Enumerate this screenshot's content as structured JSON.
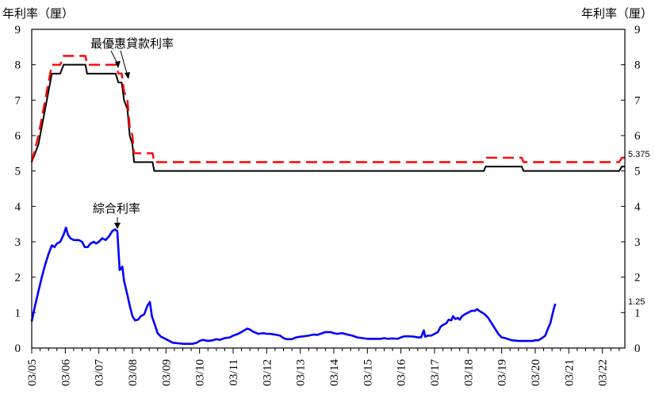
{
  "chart_data": {
    "type": "line",
    "left_unit_label": "年利率（厘）",
    "right_unit_label": "年利率（厘）",
    "ylim": [
      0,
      9
    ],
    "y_ticks": [
      "0",
      "1",
      "2",
      "3",
      "4",
      "5",
      "6",
      "7",
      "8",
      "9"
    ],
    "xlim": [
      2005.0,
      2022.67
    ],
    "x_ticks": [
      "03/05",
      "03/06",
      "03/07",
      "03/08",
      "03/09",
      "03/10",
      "03/11",
      "03/12",
      "03/13",
      "03/14",
      "03/15",
      "03/16",
      "03/17",
      "03/18",
      "03/19",
      "03/20",
      "03/21",
      "03/22"
    ],
    "grid": false,
    "legend": "none",
    "annotations": [
      {
        "text": "最優惠貸款利率"
      },
      {
        "text": "綜合利率"
      }
    ],
    "end_labels": [
      "5.375",
      "1.25"
    ],
    "colors": {
      "prime_low": "#000000",
      "prime_high": "#ff0000",
      "composite": "#0000ff"
    },
    "series": [
      {
        "key": "prime_low",
        "style": "solid",
        "points": [
          [
            2005.0,
            5.25
          ],
          [
            2005.2,
            5.75
          ],
          [
            2005.35,
            6.5
          ],
          [
            2005.5,
            7.25
          ],
          [
            2005.6,
            7.75
          ],
          [
            2005.85,
            7.75
          ],
          [
            2005.95,
            8.0
          ],
          [
            2006.6,
            8.0
          ],
          [
            2006.65,
            7.75
          ],
          [
            2007.5,
            7.75
          ],
          [
            2007.58,
            7.5
          ],
          [
            2007.68,
            7.5
          ],
          [
            2007.75,
            7.0
          ],
          [
            2007.85,
            6.75
          ],
          [
            2007.92,
            6.0
          ],
          [
            2008.0,
            5.75
          ],
          [
            2008.05,
            5.25
          ],
          [
            2008.6,
            5.25
          ],
          [
            2008.65,
            5.0
          ],
          [
            2018.47,
            5.0
          ],
          [
            2018.52,
            5.125
          ],
          [
            2019.6,
            5.125
          ],
          [
            2019.65,
            5.0
          ],
          [
            2022.5,
            5.0
          ],
          [
            2022.58,
            5.125
          ],
          [
            2022.67,
            5.125
          ]
        ]
      },
      {
        "key": "prime_high",
        "style": "dashed",
        "points": [
          [
            2005.0,
            5.25
          ],
          [
            2005.2,
            6.0
          ],
          [
            2005.35,
            6.75
          ],
          [
            2005.5,
            7.5
          ],
          [
            2005.6,
            8.0
          ],
          [
            2005.85,
            8.0
          ],
          [
            2005.95,
            8.25
          ],
          [
            2006.6,
            8.25
          ],
          [
            2006.65,
            8.0
          ],
          [
            2007.5,
            8.0
          ],
          [
            2007.58,
            7.75
          ],
          [
            2007.68,
            7.75
          ],
          [
            2007.75,
            7.25
          ],
          [
            2007.85,
            7.0
          ],
          [
            2007.92,
            6.25
          ],
          [
            2008.0,
            6.0
          ],
          [
            2008.05,
            5.5
          ],
          [
            2008.6,
            5.5
          ],
          [
            2008.65,
            5.25
          ],
          [
            2018.47,
            5.25
          ],
          [
            2018.52,
            5.375
          ],
          [
            2019.6,
            5.375
          ],
          [
            2019.65,
            5.25
          ],
          [
            2022.5,
            5.25
          ],
          [
            2022.58,
            5.375
          ],
          [
            2022.67,
            5.375
          ]
        ]
      },
      {
        "key": "composite",
        "style": "solid",
        "points": [
          [
            2005.0,
            0.75
          ],
          [
            2005.1,
            1.2
          ],
          [
            2005.2,
            1.6
          ],
          [
            2005.3,
            2.0
          ],
          [
            2005.4,
            2.35
          ],
          [
            2005.5,
            2.65
          ],
          [
            2005.6,
            2.9
          ],
          [
            2005.68,
            2.85
          ],
          [
            2005.75,
            2.95
          ],
          [
            2005.85,
            3.0
          ],
          [
            2005.95,
            3.2
          ],
          [
            2006.02,
            3.4
          ],
          [
            2006.08,
            3.2
          ],
          [
            2006.15,
            3.1
          ],
          [
            2006.25,
            3.05
          ],
          [
            2006.4,
            3.05
          ],
          [
            2006.5,
            3.0
          ],
          [
            2006.58,
            2.85
          ],
          [
            2006.67,
            2.85
          ],
          [
            2006.75,
            2.95
          ],
          [
            2006.85,
            3.0
          ],
          [
            2006.92,
            2.95
          ],
          [
            2007.0,
            3.0
          ],
          [
            2007.1,
            3.1
          ],
          [
            2007.2,
            3.05
          ],
          [
            2007.3,
            3.15
          ],
          [
            2007.4,
            3.3
          ],
          [
            2007.48,
            3.35
          ],
          [
            2007.55,
            3.3
          ],
          [
            2007.62,
            2.2
          ],
          [
            2007.7,
            2.3
          ],
          [
            2007.75,
            1.9
          ],
          [
            2007.85,
            1.5
          ],
          [
            2007.92,
            1.2
          ],
          [
            2008.0,
            0.9
          ],
          [
            2008.08,
            0.78
          ],
          [
            2008.17,
            0.8
          ],
          [
            2008.25,
            0.9
          ],
          [
            2008.35,
            0.95
          ],
          [
            2008.45,
            1.2
          ],
          [
            2008.52,
            1.3
          ],
          [
            2008.58,
            0.9
          ],
          [
            2008.67,
            0.65
          ],
          [
            2008.75,
            0.42
          ],
          [
            2008.85,
            0.32
          ],
          [
            2009.0,
            0.25
          ],
          [
            2009.2,
            0.15
          ],
          [
            2009.5,
            0.12
          ],
          [
            2009.8,
            0.12
          ],
          [
            2009.92,
            0.15
          ],
          [
            2010.0,
            0.2
          ],
          [
            2010.1,
            0.23
          ],
          [
            2010.25,
            0.2
          ],
          [
            2010.4,
            0.22
          ],
          [
            2010.5,
            0.25
          ],
          [
            2010.6,
            0.23
          ],
          [
            2010.75,
            0.28
          ],
          [
            2010.9,
            0.3
          ],
          [
            2011.0,
            0.35
          ],
          [
            2011.15,
            0.4
          ],
          [
            2011.3,
            0.48
          ],
          [
            2011.42,
            0.55
          ],
          [
            2011.5,
            0.52
          ],
          [
            2011.6,
            0.46
          ],
          [
            2011.75,
            0.4
          ],
          [
            2011.9,
            0.42
          ],
          [
            2012.0,
            0.4
          ],
          [
            2012.1,
            0.4
          ],
          [
            2012.25,
            0.38
          ],
          [
            2012.4,
            0.35
          ],
          [
            2012.5,
            0.28
          ],
          [
            2012.6,
            0.25
          ],
          [
            2012.75,
            0.25
          ],
          [
            2012.88,
            0.3
          ],
          [
            2013.0,
            0.32
          ],
          [
            2013.1,
            0.33
          ],
          [
            2013.25,
            0.35
          ],
          [
            2013.4,
            0.38
          ],
          [
            2013.5,
            0.37
          ],
          [
            2013.6,
            0.4
          ],
          [
            2013.75,
            0.45
          ],
          [
            2013.9,
            0.45
          ],
          [
            2014.0,
            0.42
          ],
          [
            2014.1,
            0.4
          ],
          [
            2014.25,
            0.42
          ],
          [
            2014.4,
            0.38
          ],
          [
            2014.55,
            0.35
          ],
          [
            2014.7,
            0.3
          ],
          [
            2014.85,
            0.28
          ],
          [
            2015.0,
            0.26
          ],
          [
            2015.2,
            0.26
          ],
          [
            2015.4,
            0.26
          ],
          [
            2015.5,
            0.28
          ],
          [
            2015.6,
            0.26
          ],
          [
            2015.75,
            0.27
          ],
          [
            2015.9,
            0.26
          ],
          [
            2016.0,
            0.3
          ],
          [
            2016.1,
            0.33
          ],
          [
            2016.25,
            0.33
          ],
          [
            2016.4,
            0.32
          ],
          [
            2016.5,
            0.3
          ],
          [
            2016.6,
            0.3
          ],
          [
            2016.68,
            0.5
          ],
          [
            2016.72,
            0.32
          ],
          [
            2016.8,
            0.35
          ],
          [
            2016.9,
            0.35
          ],
          [
            2017.0,
            0.4
          ],
          [
            2017.1,
            0.45
          ],
          [
            2017.18,
            0.6
          ],
          [
            2017.25,
            0.65
          ],
          [
            2017.35,
            0.7
          ],
          [
            2017.42,
            0.8
          ],
          [
            2017.5,
            0.78
          ],
          [
            2017.55,
            0.9
          ],
          [
            2017.62,
            0.82
          ],
          [
            2017.7,
            0.85
          ],
          [
            2017.75,
            0.8
          ],
          [
            2017.82,
            0.9
          ],
          [
            2017.9,
            0.95
          ],
          [
            2018.0,
            1.0
          ],
          [
            2018.1,
            1.05
          ],
          [
            2018.2,
            1.05
          ],
          [
            2018.27,
            1.1
          ],
          [
            2018.33,
            1.05
          ],
          [
            2018.42,
            1.0
          ],
          [
            2018.5,
            0.95
          ],
          [
            2018.6,
            0.85
          ],
          [
            2018.7,
            0.7
          ],
          [
            2018.8,
            0.55
          ],
          [
            2018.9,
            0.4
          ],
          [
            2019.0,
            0.3
          ],
          [
            2019.1,
            0.28
          ],
          [
            2019.2,
            0.25
          ],
          [
            2019.3,
            0.22
          ],
          [
            2019.5,
            0.2
          ],
          [
            2019.75,
            0.2
          ],
          [
            2019.92,
            0.2
          ],
          [
            2020.0,
            0.22
          ],
          [
            2020.1,
            0.22
          ],
          [
            2020.2,
            0.28
          ],
          [
            2020.3,
            0.35
          ],
          [
            2020.38,
            0.55
          ],
          [
            2020.45,
            0.7
          ],
          [
            2020.5,
            0.9
          ],
          [
            2020.55,
            1.1
          ],
          [
            2020.6,
            1.25
          ]
        ]
      }
    ]
  }
}
